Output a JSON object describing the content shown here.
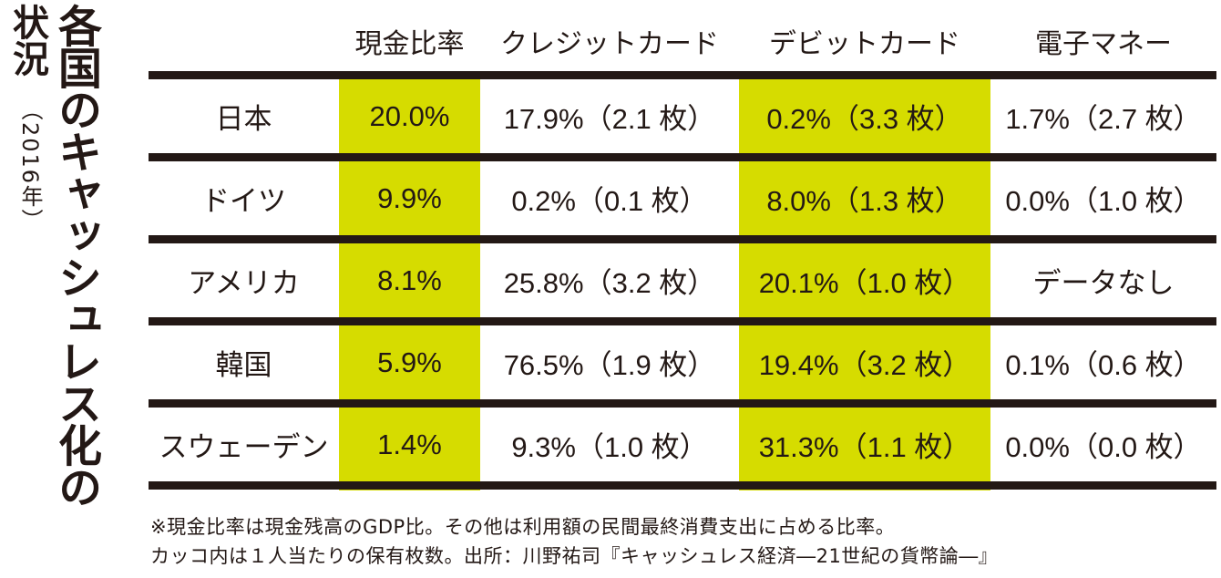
{
  "title": {
    "main": "各国のキャッシュレス化の",
    "sub": "状況",
    "year": "（2016年）"
  },
  "highlight_color": "#d6dc00",
  "columns": [
    "",
    "現金比率",
    "クレジットカード",
    "デビットカード",
    "電子マネー"
  ],
  "rows": [
    {
      "country": "日本",
      "cash": "20.0%",
      "credit": "17.9%（2.1 枚）",
      "debit": "0.2%（3.3 枚）",
      "emoney": "1.7%（2.7 枚）"
    },
    {
      "country": "ドイツ",
      "cash": "9.9%",
      "credit": "0.2%（0.1 枚）",
      "debit": "8.0%（1.3 枚）",
      "emoney": "0.0%（1.0 枚）"
    },
    {
      "country": "アメリカ",
      "cash": "8.1%",
      "credit": "25.8%（3.2 枚）",
      "debit": "20.1%（1.0 枚）",
      "emoney": "データなし"
    },
    {
      "country": "韓国",
      "cash": "5.9%",
      "credit": "76.5%（1.9 枚）",
      "debit": "19.4%（3.2 枚）",
      "emoney": "0.1%（0.6 枚）"
    },
    {
      "country": "スウェーデン",
      "cash": "1.4%",
      "credit": "9.3%（1.0 枚）",
      "debit": "31.3%（1.1 枚）",
      "emoney": "0.0%（0.0 枚）"
    }
  ],
  "footnotes": [
    "※現金比率は現金残高のGDP比。その他は利用額の民間最終消費支出に占める比率。",
    "カッコ内は１人当たりの保有枚数。出所：川野祐司『キャッシュレス経済―21世紀の貨幣論―』"
  ],
  "chart_data": {
    "type": "table",
    "title": "各国のキャッシュレス化の状況（2016年）",
    "columns": [
      "現金比率",
      "クレジットカード",
      "デビットカード",
      "電子マネー"
    ],
    "categories": [
      "日本",
      "ドイツ",
      "アメリカ",
      "韓国",
      "スウェーデン"
    ],
    "series": [
      {
        "name": "現金比率",
        "values": [
          20.0,
          9.9,
          8.1,
          5.9,
          1.4
        ]
      },
      {
        "name": "クレジットカード",
        "values": [
          17.9,
          0.2,
          25.8,
          76.5,
          9.3
        ],
        "cards_per_person": [
          2.1,
          0.1,
          3.2,
          1.9,
          1.0
        ]
      },
      {
        "name": "デビットカード",
        "values": [
          0.2,
          8.0,
          20.1,
          19.4,
          31.3
        ],
        "cards_per_person": [
          3.3,
          1.3,
          1.0,
          3.2,
          1.1
        ]
      },
      {
        "name": "電子マネー",
        "values": [
          1.7,
          0.0,
          null,
          0.1,
          0.0
        ],
        "cards_per_person": [
          2.7,
          1.0,
          null,
          0.6,
          0.0
        ]
      }
    ]
  }
}
